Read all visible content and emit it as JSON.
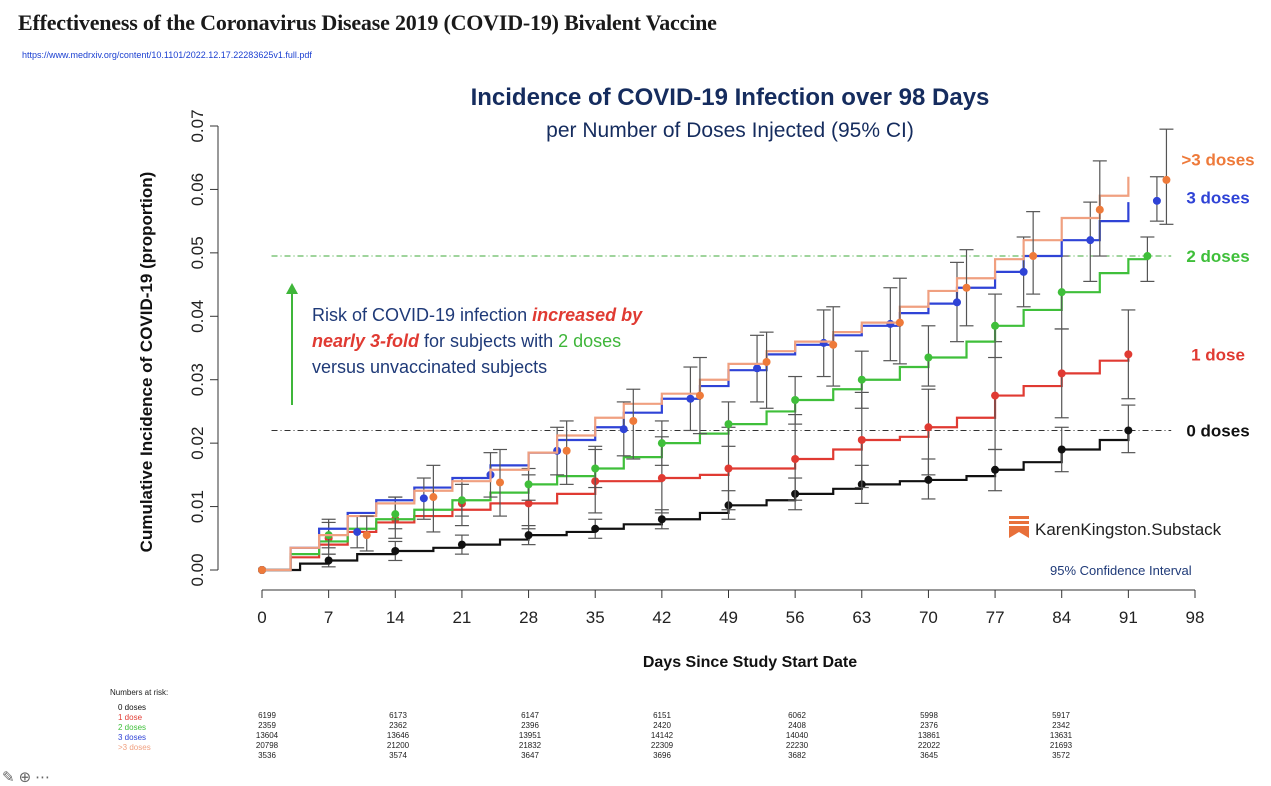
{
  "page": {
    "title": "Effectiveness of the Coronavirus Disease 2019 (COVID-19) Bivalent Vaccine",
    "source_url": "https://www.medrxiv.org/content/10.1101/2022.12.17.22283625v1.full.pdf"
  },
  "colors": {
    "dose0": "#111111",
    "dose1": "#e03a32",
    "dose2": "#3fbf3a",
    "dose3": "#2f43d6",
    "dose4": "#f0a080",
    "dose4_label": "#ee7a3a",
    "ref_green": "#3fa83a",
    "ref_black": "#333333"
  },
  "annotation": {
    "p1": "Risk of COVID-19 infection ",
    "p2": "increased by nearly 3-fold",
    "p3": " for subjects with ",
    "p4": "2 doses",
    "p5": " versus unvaccinated subjects"
  },
  "brand": "KarenKingston.Substack",
  "ci_note": "95% Confidence Interval",
  "risk_table": {
    "heading": "Numbers at risk:",
    "groups": [
      {
        "label": "0 doses",
        "color": "#111111",
        "values": [
          "6199",
          "6173",
          "6147",
          "6151",
          "6062",
          "5998",
          "5917"
        ]
      },
      {
        "label": "1 dose",
        "color": "#e03a32",
        "values": [
          "2359",
          "2362",
          "2396",
          "2420",
          "2408",
          "2376",
          "2342"
        ]
      },
      {
        "label": "2 doses",
        "color": "#3fbf3a",
        "values": [
          "13604",
          "13646",
          "13951",
          "14142",
          "14040",
          "13861",
          "13631"
        ]
      },
      {
        "label": "3 doses",
        "color": "#2f43d6",
        "values": [
          "20798",
          "21200",
          "21832",
          "22309",
          "22230",
          "22022",
          "21693"
        ]
      },
      {
        "label": ">3 doses",
        "color": "#f0a080",
        "values": [
          "3536",
          "3574",
          "3647",
          "3696",
          "3682",
          "3645",
          "3572"
        ]
      }
    ]
  },
  "chart_data": {
    "type": "line",
    "title": "Incidence of COVID-19 Infection over 98 Days",
    "subtitle": "per Number of Doses Injected (95% CI)",
    "xlabel": "Days Since Study Start Date",
    "ylabel": "Cumulative Incidence of COVID-19 (proportion)",
    "xlim": [
      0,
      98
    ],
    "ylim": [
      0,
      0.07
    ],
    "x_ticks": [
      0,
      7,
      14,
      21,
      28,
      35,
      42,
      49,
      56,
      63,
      70,
      77,
      84,
      91,
      98
    ],
    "y_ticks": [
      0.0,
      0.01,
      0.02,
      0.03,
      0.04,
      0.05,
      0.06,
      0.07
    ],
    "y_tick_labels": [
      "0.00",
      "0.01",
      "0.02",
      "0.03",
      "0.04",
      "0.05",
      "0.06",
      "0.07"
    ],
    "reference_lines": [
      {
        "y": 0.0495,
        "color": "#3fa83a"
      },
      {
        "y": 0.022,
        "color": "#333333"
      }
    ],
    "series": [
      {
        "name": "0 doses",
        "color": "#111111",
        "label_color": "#111111",
        "x": [
          0,
          4,
          7,
          10,
          14,
          18,
          21,
          25,
          28,
          32,
          35,
          38,
          42,
          46,
          49,
          53,
          56,
          60,
          63,
          67,
          70,
          74,
          77,
          80,
          84,
          88,
          91
        ],
        "y": [
          0.0,
          0.001,
          0.0015,
          0.0025,
          0.003,
          0.0035,
          0.004,
          0.0048,
          0.0055,
          0.006,
          0.0065,
          0.0072,
          0.008,
          0.009,
          0.0102,
          0.011,
          0.012,
          0.0128,
          0.0135,
          0.014,
          0.0142,
          0.0148,
          0.0158,
          0.017,
          0.019,
          0.0205,
          0.022
        ],
        "points_x": [
          0,
          7,
          14,
          21,
          28,
          35,
          42,
          49,
          56,
          63,
          70,
          77,
          84,
          91
        ],
        "points_y": [
          0.0,
          0.0015,
          0.003,
          0.004,
          0.0055,
          0.0065,
          0.008,
          0.0102,
          0.012,
          0.0135,
          0.0142,
          0.0158,
          0.019,
          0.022
        ],
        "ci_low": [
          0.0,
          0.0005,
          0.0015,
          0.0025,
          0.004,
          0.005,
          0.0065,
          0.008,
          0.0095,
          0.0105,
          0.0112,
          0.0125,
          0.0155,
          0.0185
        ],
        "ci_high": [
          0.0,
          0.0025,
          0.0045,
          0.0055,
          0.007,
          0.008,
          0.0095,
          0.0125,
          0.0145,
          0.0165,
          0.0175,
          0.019,
          0.0225,
          0.026
        ]
      },
      {
        "name": "1 dose",
        "color": "#e03a32",
        "label_color": "#e03a32",
        "x": [
          0,
          3,
          6,
          9,
          12,
          16,
          20,
          24,
          28,
          31,
          35,
          38,
          42,
          46,
          49,
          53,
          56,
          60,
          63,
          67,
          70,
          73,
          77,
          80,
          84,
          88,
          91
        ],
        "y": [
          0.0,
          0.002,
          0.004,
          0.006,
          0.0075,
          0.0085,
          0.0095,
          0.0105,
          0.0105,
          0.012,
          0.014,
          0.014,
          0.0145,
          0.015,
          0.016,
          0.016,
          0.0175,
          0.019,
          0.0205,
          0.021,
          0.0225,
          0.024,
          0.0275,
          0.029,
          0.031,
          0.033,
          0.034
        ],
        "points_x": [
          0,
          7,
          14,
          21,
          28,
          35,
          42,
          49,
          56,
          63,
          70,
          77,
          84,
          91
        ],
        "points_y": [
          0.0,
          0.005,
          0.008,
          0.0105,
          0.0105,
          0.014,
          0.0145,
          0.016,
          0.0175,
          0.0205,
          0.0225,
          0.0275,
          0.031,
          0.034
        ],
        "ci_low": [
          0.0,
          0.0025,
          0.005,
          0.007,
          0.0065,
          0.009,
          0.009,
          0.0095,
          0.011,
          0.013,
          0.015,
          0.019,
          0.024,
          0.027
        ],
        "ci_high": [
          0.0,
          0.008,
          0.0115,
          0.0145,
          0.015,
          0.019,
          0.021,
          0.0225,
          0.0245,
          0.028,
          0.0285,
          0.036,
          0.038,
          0.041
        ]
      },
      {
        "name": "2 doses",
        "color": "#3fbf3a",
        "label_color": "#3fbf3a",
        "x": [
          0,
          3,
          6,
          9,
          12,
          16,
          20,
          24,
          28,
          31,
          35,
          38,
          42,
          46,
          49,
          53,
          56,
          60,
          63,
          67,
          70,
          74,
          77,
          80,
          84,
          88,
          91,
          93
        ],
        "y": [
          0.0,
          0.0025,
          0.0045,
          0.0065,
          0.008,
          0.0095,
          0.011,
          0.0122,
          0.0135,
          0.0148,
          0.016,
          0.0178,
          0.02,
          0.0215,
          0.023,
          0.025,
          0.0268,
          0.0285,
          0.03,
          0.032,
          0.0335,
          0.036,
          0.0385,
          0.041,
          0.0438,
          0.0468,
          0.049,
          0.0495
        ],
        "points_x": [
          0,
          7,
          14,
          21,
          28,
          35,
          42,
          49,
          56,
          63,
          70,
          77,
          84,
          93
        ],
        "points_y": [
          0.0,
          0.0055,
          0.0088,
          0.011,
          0.0135,
          0.016,
          0.02,
          0.023,
          0.0268,
          0.03,
          0.0335,
          0.0385,
          0.0438,
          0.0495
        ],
        "ci_low": [
          0.0,
          0.0035,
          0.0065,
          0.0085,
          0.011,
          0.013,
          0.0165,
          0.0195,
          0.023,
          0.0255,
          0.029,
          0.0335,
          0.038,
          0.0455
        ],
        "ci_high": [
          0.0,
          0.0075,
          0.0115,
          0.0135,
          0.016,
          0.0195,
          0.0235,
          0.0265,
          0.0305,
          0.0345,
          0.0385,
          0.0435,
          0.0495,
          0.0525
        ]
      },
      {
        "name": "3 doses",
        "color": "#2f43d6",
        "label_color": "#2f43d6",
        "x": [
          0,
          3,
          6,
          9,
          12,
          16,
          20,
          24,
          28,
          31,
          35,
          38,
          42,
          46,
          49,
          53,
          56,
          60,
          63,
          67,
          70,
          73,
          77,
          80,
          84,
          88,
          91
        ],
        "y": [
          0.0,
          0.0035,
          0.0065,
          0.009,
          0.011,
          0.013,
          0.0145,
          0.0165,
          0.0185,
          0.0205,
          0.0225,
          0.0248,
          0.027,
          0.029,
          0.0315,
          0.034,
          0.0355,
          0.037,
          0.0385,
          0.0405,
          0.042,
          0.0445,
          0.047,
          0.0495,
          0.052,
          0.055,
          0.058
        ],
        "points_x": [
          0,
          10,
          17,
          24,
          31,
          38,
          45,
          52,
          59,
          66,
          73,
          80,
          87,
          94
        ],
        "points_y": [
          0.0,
          0.006,
          0.0113,
          0.015,
          0.0188,
          0.0222,
          0.027,
          0.0318,
          0.0358,
          0.0388,
          0.0422,
          0.047,
          0.052,
          0.0582
        ],
        "ci_low": [
          0.0,
          0.0035,
          0.008,
          0.0115,
          0.015,
          0.018,
          0.022,
          0.0265,
          0.0305,
          0.033,
          0.036,
          0.0415,
          0.0455,
          0.055
        ],
        "ci_high": [
          0.0,
          0.0085,
          0.0145,
          0.0185,
          0.0225,
          0.0265,
          0.032,
          0.037,
          0.041,
          0.0445,
          0.0485,
          0.0525,
          0.058,
          0.062
        ]
      },
      {
        "name": ">3 doses",
        "color": "#f0a080",
        "label_color": "#ee7a3a",
        "x": [
          0,
          3,
          6,
          9,
          12,
          16,
          20,
          24,
          28,
          31,
          35,
          38,
          42,
          46,
          49,
          53,
          56,
          60,
          63,
          67,
          70,
          73,
          77,
          80,
          84,
          88,
          91
        ],
        "y": [
          0.0,
          0.0035,
          0.0055,
          0.0085,
          0.0105,
          0.0125,
          0.014,
          0.0158,
          0.0185,
          0.0212,
          0.024,
          0.0262,
          0.0278,
          0.03,
          0.0325,
          0.0345,
          0.036,
          0.0375,
          0.039,
          0.0415,
          0.044,
          0.046,
          0.049,
          0.052,
          0.0555,
          0.059,
          0.062
        ],
        "points_x": [
          0,
          11,
          18,
          25,
          32,
          39,
          46,
          53,
          60,
          67,
          74,
          81,
          88,
          95
        ],
        "points_y": [
          0.0,
          0.0055,
          0.0115,
          0.0138,
          0.0188,
          0.0235,
          0.0275,
          0.0328,
          0.0355,
          0.039,
          0.0445,
          0.0495,
          0.0568,
          0.0615
        ],
        "ci_low": [
          0.0,
          0.003,
          0.006,
          0.0085,
          0.0135,
          0.0175,
          0.0215,
          0.0255,
          0.029,
          0.0325,
          0.0385,
          0.0435,
          0.0495,
          0.0545
        ],
        "ci_high": [
          0.0,
          0.0085,
          0.0165,
          0.019,
          0.0235,
          0.0285,
          0.0335,
          0.0375,
          0.0415,
          0.046,
          0.0505,
          0.0565,
          0.0645,
          0.0695
        ]
      }
    ]
  }
}
